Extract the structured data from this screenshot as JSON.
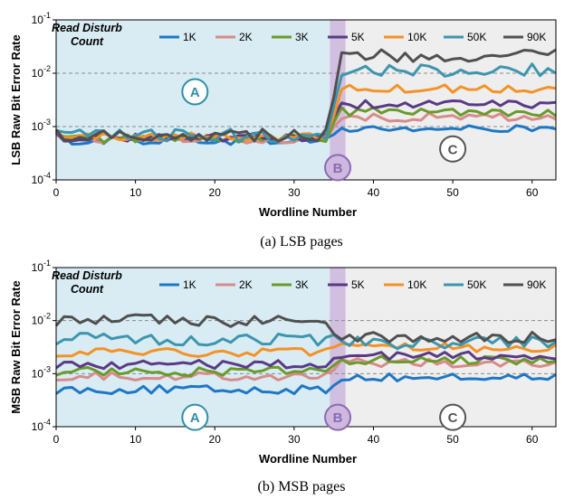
{
  "colors": {
    "1K": "#1f77c4",
    "2K": "#d88b8b",
    "3K": "#6a9a2b",
    "5K": "#5b3a85",
    "10K": "#f39226",
    "50K": "#3d96ad",
    "90K": "#505050",
    "regionA_bg": "#d9ecf3",
    "regionB_bg": "#c9b4da",
    "regionC_bg": "#eeeeee",
    "A": "#2f8fa6",
    "B": "#8b69b5",
    "C": "#555555"
  },
  "chart_data": [
    {
      "id": "lsb",
      "type": "line",
      "caption": "(a) LSB pages",
      "xlabel": "Wordline Number",
      "ylabel": "LSB Raw Bit Error Rate",
      "legend_title": [
        "Read Disturb",
        "Count"
      ],
      "xlim": [
        0,
        63
      ],
      "ylim": [
        0.0001,
        0.1
      ],
      "yscale": "log",
      "xticks": [
        0,
        10,
        20,
        30,
        40,
        50,
        60
      ],
      "yticks": [
        {
          "value": 0.0001,
          "base": "10",
          "exp": "-4"
        },
        {
          "value": 0.001,
          "base": "10",
          "exp": "-3"
        },
        {
          "value": 0.01,
          "base": "10",
          "exp": "-2"
        },
        {
          "value": 0.1,
          "base": "10",
          "exp": "-1"
        }
      ],
      "reference_lines": [
        0.01,
        0.001
      ],
      "regions": [
        {
          "label": "A",
          "x0": 0,
          "x1": 34.5,
          "label_x": 17.5,
          "label_y": 0.0045
        },
        {
          "label": "B",
          "x0": 34.5,
          "x1": 36.5,
          "label_x": 35.5,
          "label_y": 0.00017
        },
        {
          "label": "C",
          "x0": 36.5,
          "x1": 63,
          "label_x": 50,
          "label_y": 0.00038
        }
      ],
      "series": [
        {
          "name": "1K",
          "before": 0.00055,
          "after": 0.0009
        },
        {
          "name": "2K",
          "before": 0.00058,
          "after": 0.0015
        },
        {
          "name": "3K",
          "before": 0.0006,
          "after": 0.0019
        },
        {
          "name": "5K",
          "before": 0.00063,
          "after": 0.0026
        },
        {
          "name": "10K",
          "before": 0.00065,
          "after": 0.0052
        },
        {
          "name": "50K",
          "before": 0.00068,
          "after": 0.0115
        },
        {
          "name": "90K",
          "before": 0.0007,
          "after": 0.021
        }
      ]
    },
    {
      "id": "msb",
      "type": "line",
      "caption": "(b) MSB pages",
      "xlabel": "Wordline Number",
      "ylabel": "MSB Raw Bit Error Rate",
      "legend_title": [
        "Read Disturb",
        "Count"
      ],
      "xlim": [
        0,
        63
      ],
      "ylim": [
        0.0001,
        0.1
      ],
      "yscale": "log",
      "xticks": [
        0,
        10,
        20,
        30,
        40,
        50,
        60
      ],
      "yticks": [
        {
          "value": 0.0001,
          "base": "10",
          "exp": "-4"
        },
        {
          "value": 0.001,
          "base": "10",
          "exp": "-3"
        },
        {
          "value": 0.01,
          "base": "10",
          "exp": "-2"
        },
        {
          "value": 0.1,
          "base": "10",
          "exp": "-1"
        }
      ],
      "reference_lines": [
        0.01,
        0.001
      ],
      "regions": [
        {
          "label": "A",
          "x0": 0,
          "x1": 34.5,
          "label_x": 17.5,
          "label_y": 0.00015
        },
        {
          "label": "B",
          "x0": 34.5,
          "x1": 36.5,
          "label_x": 35.5,
          "label_y": 0.00015
        },
        {
          "label": "C",
          "x0": 36.5,
          "x1": 63,
          "label_x": 50,
          "label_y": 0.00015
        }
      ],
      "series": [
        {
          "name": "1K",
          "before": 0.0005,
          "after": 0.00085
        },
        {
          "name": "2K",
          "before": 0.0009,
          "after": 0.0016
        },
        {
          "name": "3K",
          "before": 0.0011,
          "after": 0.0018
        },
        {
          "name": "5K",
          "before": 0.0015,
          "after": 0.0022
        },
        {
          "name": "10K",
          "before": 0.0025,
          "after": 0.0031
        },
        {
          "name": "50K",
          "before": 0.0045,
          "after": 0.0038
        },
        {
          "name": "90K",
          "before": 0.01,
          "after": 0.0048
        }
      ]
    }
  ]
}
